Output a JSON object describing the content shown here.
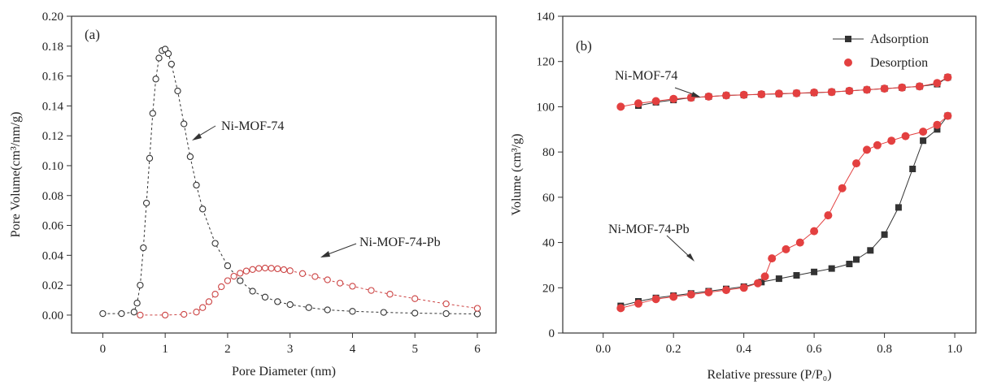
{
  "chart_data": [
    {
      "type": "scatter",
      "panel_label": "(a)",
      "xlabel": "Pore Diameter (nm)",
      "ylabel": "Pore Volume(cm³/nm/g)",
      "xlim": [
        -0.5,
        6.3
      ],
      "ylim": [
        -0.012,
        0.2
      ],
      "xticks": [
        0,
        1,
        2,
        3,
        4,
        5,
        6
      ],
      "yticks": [
        0.0,
        0.02,
        0.04,
        0.06,
        0.08,
        0.1,
        0.12,
        0.14,
        0.16,
        0.18,
        0.2
      ],
      "ytick_labels": [
        "0.00",
        "0.02",
        "0.04",
        "0.06",
        "0.08",
        "0.10",
        "0.12",
        "0.14",
        "0.16",
        "0.18",
        "0.20"
      ],
      "grid": false,
      "series": [
        {
          "name": "Ni-MOF-74",
          "color": "#333333",
          "marker": "open-circle",
          "x": [
            0.0,
            0.3,
            0.5,
            0.55,
            0.6,
            0.65,
            0.7,
            0.75,
            0.8,
            0.85,
            0.9,
            0.95,
            1.0,
            1.05,
            1.1,
            1.2,
            1.3,
            1.4,
            1.5,
            1.6,
            1.8,
            2.0,
            2.2,
            2.4,
            2.6,
            2.8,
            3.0,
            3.3,
            3.6,
            4.0,
            4.5,
            5.0,
            5.5,
            6.0
          ],
          "y": [
            0.001,
            0.001,
            0.002,
            0.008,
            0.02,
            0.045,
            0.075,
            0.105,
            0.135,
            0.158,
            0.172,
            0.177,
            0.178,
            0.175,
            0.168,
            0.15,
            0.128,
            0.106,
            0.087,
            0.071,
            0.048,
            0.033,
            0.023,
            0.016,
            0.012,
            0.009,
            0.007,
            0.005,
            0.0035,
            0.0025,
            0.0018,
            0.0013,
            0.001,
            0.0008
          ]
        },
        {
          "name": "Ni-MOF-74-Pb",
          "color": "#cc4444",
          "marker": "open-circle",
          "x": [
            0.6,
            1.0,
            1.3,
            1.5,
            1.6,
            1.7,
            1.8,
            1.9,
            2.0,
            2.1,
            2.2,
            2.3,
            2.4,
            2.5,
            2.6,
            2.7,
            2.8,
            2.9,
            3.0,
            3.2,
            3.4,
            3.6,
            3.8,
            4.0,
            4.3,
            4.6,
            5.0,
            5.5,
            6.0
          ],
          "y": [
            0.0,
            0.0,
            0.0005,
            0.002,
            0.005,
            0.009,
            0.014,
            0.019,
            0.023,
            0.026,
            0.028,
            0.0295,
            0.0305,
            0.0312,
            0.0315,
            0.0313,
            0.031,
            0.0304,
            0.0297,
            0.0278,
            0.0258,
            0.0236,
            0.0214,
            0.0193,
            0.0165,
            0.014,
            0.011,
            0.0075,
            0.0045
          ]
        }
      ],
      "annotations": [
        "Ni-MOF-74",
        "Ni-MOF-74-Pb"
      ]
    },
    {
      "type": "line",
      "panel_label": "(b)",
      "xlabel": "Relative pressure (P/P₀)",
      "ylabel": "Volume (cm³/g)",
      "xlim": [
        -0.115,
        1.06
      ],
      "ylim": [
        0,
        140
      ],
      "xticks": [
        0.0,
        0.2,
        0.4,
        0.6,
        0.8,
        1.0
      ],
      "xtick_labels": [
        "0.0",
        "0.2",
        "0.4",
        "0.6",
        "0.8",
        "1.0"
      ],
      "yticks": [
        0,
        20,
        40,
        60,
        80,
        100,
        120,
        140
      ],
      "grid": false,
      "legend_position": "top-right",
      "legend": [
        {
          "name": "Adsorption",
          "color": "#333333",
          "marker": "square"
        },
        {
          "name": "Desorption",
          "color": "#e34040",
          "marker": "circle"
        }
      ],
      "series": [
        {
          "name": "Adsorption",
          "sample": "Ni-MOF-74",
          "color": "#333333",
          "marker": "square",
          "x": [
            0.1,
            0.15,
            0.2,
            0.25,
            0.3,
            0.35,
            0.4,
            0.45,
            0.5,
            0.55,
            0.6,
            0.65,
            0.7,
            0.75,
            0.8,
            0.85,
            0.9,
            0.95,
            0.98
          ],
          "y": [
            100.5,
            102,
            103,
            104,
            104.5,
            105,
            105.2,
            105.5,
            105.7,
            106,
            106.2,
            106.5,
            107,
            107.5,
            108,
            108.5,
            109,
            110,
            113
          ]
        },
        {
          "name": "Desorption",
          "sample": "Ni-MOF-74",
          "color": "#e34040",
          "marker": "circle",
          "x": [
            0.98,
            0.95,
            0.9,
            0.85,
            0.8,
            0.75,
            0.7,
            0.65,
            0.6,
            0.55,
            0.5,
            0.45,
            0.4,
            0.35,
            0.3,
            0.25,
            0.2,
            0.15,
            0.1,
            0.05
          ],
          "y": [
            113,
            110.5,
            109,
            108.5,
            108,
            107.5,
            107,
            106.5,
            106.3,
            106,
            105.8,
            105.5,
            105.3,
            105,
            104.5,
            104,
            103.5,
            102.5,
            101.5,
            100
          ]
        },
        {
          "name": "Adsorption",
          "sample": "Ni-MOF-74-Pb",
          "color": "#333333",
          "marker": "square",
          "x": [
            0.05,
            0.1,
            0.15,
            0.2,
            0.25,
            0.3,
            0.35,
            0.4,
            0.45,
            0.5,
            0.55,
            0.6,
            0.65,
            0.7,
            0.72,
            0.76,
            0.8,
            0.84,
            0.88,
            0.91,
            0.95,
            0.98
          ],
          "y": [
            12,
            14,
            15.5,
            16.5,
            17.5,
            18.5,
            19.5,
            20.5,
            22.5,
            24,
            25.5,
            27,
            28.5,
            30.5,
            32.5,
            36.5,
            43.5,
            55.5,
            72.5,
            85,
            90,
            96
          ]
        },
        {
          "name": "Desorption",
          "sample": "Ni-MOF-74-Pb",
          "color": "#e34040",
          "marker": "circle",
          "x": [
            0.98,
            0.95,
            0.91,
            0.86,
            0.82,
            0.78,
            0.75,
            0.72,
            0.68,
            0.64,
            0.6,
            0.56,
            0.52,
            0.48,
            0.46,
            0.44,
            0.4,
            0.35,
            0.3,
            0.25,
            0.2,
            0.15,
            0.1,
            0.05
          ],
          "y": [
            96,
            92,
            89,
            87,
            85,
            83,
            81,
            75,
            64,
            52,
            45,
            40,
            37,
            33,
            25,
            22,
            20,
            19,
            18,
            17,
            16,
            15,
            13,
            11
          ]
        }
      ],
      "annotations": [
        "Ni-MOF-74",
        "Ni-MOF-74-Pb"
      ]
    }
  ]
}
